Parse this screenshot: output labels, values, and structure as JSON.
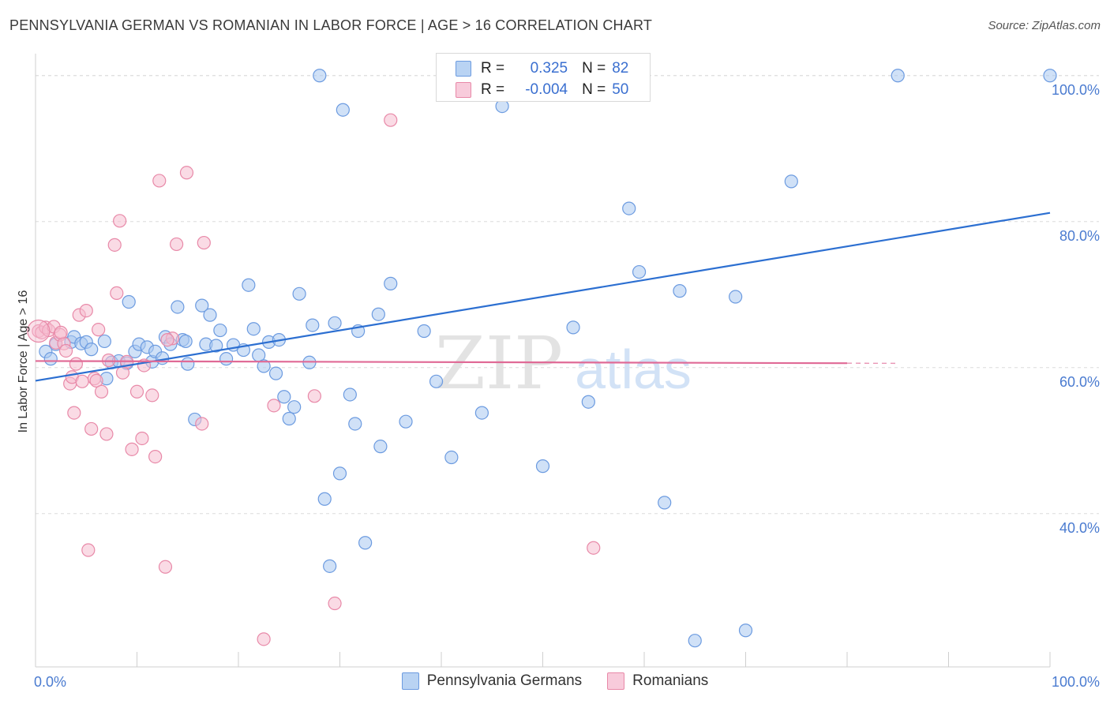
{
  "title": "PENNSYLVANIA GERMAN VS ROMANIAN IN LABOR FORCE | AGE > 16 CORRELATION CHART",
  "source": "Source: ZipAtlas.com",
  "watermark": {
    "zip": "ZIP",
    "atlas": "atlas"
  },
  "colors": {
    "blue_fill": "#a9c8f0",
    "blue_stroke": "#6c9be0",
    "blue_line": "#2c6fd1",
    "pink_fill": "#f6bdd0",
    "pink_stroke": "#e889a8",
    "pink_line": "#e06a96",
    "grid": "#dcdcdc",
    "tick_text": "#4a7bd0"
  },
  "legend": {
    "rows": [
      {
        "r_label": "R =",
        "r_value": "0.325",
        "n_label": "N =",
        "n_value": "82"
      },
      {
        "r_label": "R =",
        "r_value": "-0.004",
        "n_label": "N =",
        "n_value": "50"
      }
    ]
  },
  "bottom_legend": [
    "Pennsylvania Germans",
    "Romanians"
  ],
  "chart_data": {
    "type": "scatter",
    "title": "PENNSYLVANIA GERMAN VS ROMANIAN IN LABOR FORCE | AGE > 16 CORRELATION CHART",
    "xlabel": "",
    "ylabel": "In Labor Force | Age > 16",
    "xlim": [
      0,
      100
    ],
    "ylim": [
      19,
      103
    ],
    "x_tick_labels": [
      "0.0%",
      "100.0%"
    ],
    "y_ticks": [
      40,
      60,
      80,
      100
    ],
    "y_tick_labels": [
      "40.0%",
      "60.0%",
      "80.0%",
      "100.0%"
    ],
    "grid": true,
    "legend_position": "top-center",
    "series": [
      {
        "name": "Pennsylvania Germans",
        "color": "#6c9be0",
        "trend": {
          "x": [
            0,
            100
          ],
          "y": [
            58.2,
            81.2
          ]
        },
        "points": [
          [
            1.0,
            62.2
          ],
          [
            1.5,
            61.2
          ],
          [
            2.0,
            63.2
          ],
          [
            3.5,
            63.5
          ],
          [
            3.8,
            64.2
          ],
          [
            4.5,
            63.3
          ],
          [
            5.0,
            63.5
          ],
          [
            5.5,
            62.5
          ],
          [
            6.8,
            63.6
          ],
          [
            7.0,
            58.5
          ],
          [
            7.5,
            60.7
          ],
          [
            8.2,
            60.9
          ],
          [
            9.0,
            60.6
          ],
          [
            9.2,
            69.0
          ],
          [
            9.8,
            62.2
          ],
          [
            10.2,
            63.2
          ],
          [
            11.0,
            62.8
          ],
          [
            11.5,
            60.8
          ],
          [
            11.8,
            62.2
          ],
          [
            12.5,
            61.3
          ],
          [
            12.8,
            64.2
          ],
          [
            13.3,
            63.2
          ],
          [
            14.0,
            68.3
          ],
          [
            14.5,
            63.8
          ],
          [
            14.8,
            63.6
          ],
          [
            15.7,
            52.9
          ],
          [
            16.4,
            68.5
          ],
          [
            16.8,
            63.2
          ],
          [
            17.2,
            67.2
          ],
          [
            17.8,
            63.0
          ],
          [
            18.2,
            65.1
          ],
          [
            18.8,
            61.2
          ],
          [
            19.5,
            63.1
          ],
          [
            20.5,
            62.4
          ],
          [
            21.0,
            71.3
          ],
          [
            21.5,
            65.3
          ],
          [
            22.0,
            61.7
          ],
          [
            22.5,
            60.2
          ],
          [
            23.0,
            63.5
          ],
          [
            23.7,
            59.2
          ],
          [
            24.0,
            63.8
          ],
          [
            24.5,
            56.0
          ],
          [
            25.0,
            53.0
          ],
          [
            25.5,
            54.6
          ],
          [
            26.0,
            70.1
          ],
          [
            27.3,
            65.8
          ],
          [
            28.5,
            42.0
          ],
          [
            29.0,
            32.8
          ],
          [
            29.5,
            66.1
          ],
          [
            30.0,
            45.5
          ],
          [
            31.0,
            56.3
          ],
          [
            31.5,
            52.3
          ],
          [
            31.8,
            65.0
          ],
          [
            32.5,
            36.0
          ],
          [
            33.8,
            67.3
          ],
          [
            34.0,
            49.2
          ],
          [
            35.0,
            71.5
          ],
          [
            36.5,
            52.6
          ],
          [
            38.3,
            65.0
          ],
          [
            39.5,
            58.1
          ],
          [
            41.0,
            47.7
          ],
          [
            44.0,
            53.8
          ],
          [
            46.0,
            95.8
          ],
          [
            47.0,
            100.0
          ],
          [
            49.0,
            100.0
          ],
          [
            53.0,
            65.5
          ],
          [
            54.5,
            55.3
          ],
          [
            58.5,
            81.8
          ],
          [
            59.5,
            73.1
          ],
          [
            63.5,
            70.5
          ],
          [
            69.0,
            69.7
          ],
          [
            74.5,
            85.5
          ],
          [
            70.0,
            24.0
          ],
          [
            65.0,
            22.6
          ],
          [
            28.0,
            100.0
          ],
          [
            30.3,
            95.3
          ],
          [
            85.0,
            100.0
          ],
          [
            100.0,
            100.0
          ],
          [
            62.0,
            41.5
          ],
          [
            50.0,
            46.5
          ],
          [
            27.0,
            60.7
          ],
          [
            15.0,
            60.5
          ]
        ]
      },
      {
        "name": "Romanians",
        "color": "#e889a8",
        "trend": {
          "x": [
            0,
            80
          ],
          "y": [
            60.9,
            60.6
          ],
          "dash_to": 85
        },
        "points": [
          [
            0.3,
            65.0
          ],
          [
            0.6,
            64.8
          ],
          [
            1.0,
            65.5
          ],
          [
            1.3,
            65.1
          ],
          [
            1.8,
            65.6
          ],
          [
            2.0,
            63.4
          ],
          [
            2.4,
            64.5
          ],
          [
            2.8,
            63.3
          ],
          [
            3.0,
            62.3
          ],
          [
            3.4,
            57.8
          ],
          [
            3.6,
            58.7
          ],
          [
            3.8,
            53.8
          ],
          [
            4.3,
            67.2
          ],
          [
            4.6,
            58.1
          ],
          [
            5.0,
            67.8
          ],
          [
            5.2,
            35.0
          ],
          [
            5.5,
            51.6
          ],
          [
            5.8,
            58.5
          ],
          [
            6.0,
            58.2
          ],
          [
            6.2,
            65.2
          ],
          [
            6.5,
            56.7
          ],
          [
            7.0,
            50.9
          ],
          [
            7.2,
            61.0
          ],
          [
            7.8,
            76.8
          ],
          [
            8.0,
            70.2
          ],
          [
            8.3,
            80.1
          ],
          [
            8.6,
            59.3
          ],
          [
            9.0,
            60.8
          ],
          [
            9.5,
            48.8
          ],
          [
            10.0,
            56.7
          ],
          [
            10.5,
            50.3
          ],
          [
            10.7,
            60.3
          ],
          [
            11.5,
            56.2
          ],
          [
            11.8,
            47.8
          ],
          [
            12.2,
            85.6
          ],
          [
            12.8,
            32.7
          ],
          [
            13.5,
            64.0
          ],
          [
            13.9,
            76.9
          ],
          [
            14.9,
            86.7
          ],
          [
            16.4,
            52.3
          ],
          [
            16.6,
            77.1
          ],
          [
            22.5,
            22.8
          ],
          [
            23.5,
            54.8
          ],
          [
            27.5,
            56.1
          ],
          [
            29.5,
            27.7
          ],
          [
            35.0,
            93.9
          ],
          [
            55.0,
            35.3
          ],
          [
            13.0,
            63.8
          ],
          [
            2.5,
            64.8
          ],
          [
            4.0,
            60.5
          ]
        ]
      }
    ]
  }
}
